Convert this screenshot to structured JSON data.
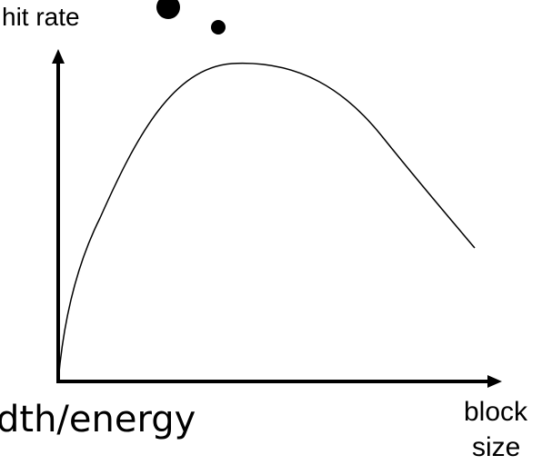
{
  "labels": {
    "y_axis": "hit rate",
    "x_axis": [
      "block",
      "size"
    ],
    "fragment": "dth/energy"
  }
}
